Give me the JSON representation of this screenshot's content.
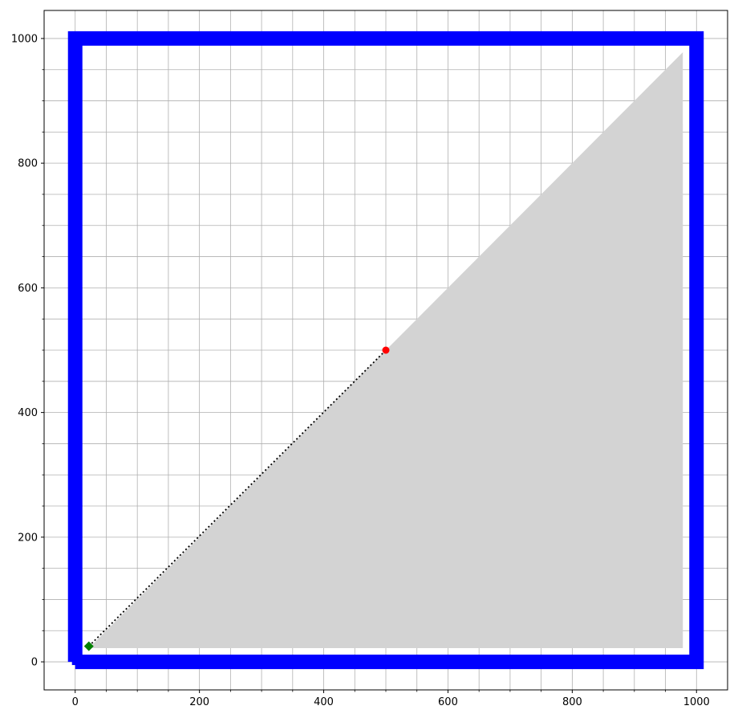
{
  "chart_data": {
    "type": "line",
    "title": "",
    "xlabel": "",
    "ylabel": "",
    "xlim": [
      -50,
      1050
    ],
    "ylim": [
      -45,
      1045
    ],
    "grid": true,
    "x_major_ticks": [
      0,
      200,
      400,
      600,
      800,
      1000
    ],
    "y_major_ticks": [
      0,
      200,
      400,
      600,
      800,
      1000
    ],
    "x_minor_ticks": [
      50,
      100,
      150,
      250,
      300,
      350,
      450,
      500,
      550,
      650,
      700,
      750,
      850,
      900,
      950
    ],
    "y_minor_ticks": [
      50,
      100,
      150,
      250,
      300,
      350,
      450,
      500,
      550,
      650,
      700,
      750,
      850,
      900,
      950
    ],
    "x_tick_labels": [
      "0",
      "200",
      "400",
      "600",
      "800",
      "1000"
    ],
    "y_tick_labels": [
      "0",
      "200",
      "400",
      "600",
      "800",
      "1000"
    ],
    "shaded_region": {
      "name": "shaded-triangle",
      "color": "#d3d3d3",
      "points": [
        [
          22,
          22
        ],
        [
          978,
          22
        ],
        [
          978,
          978
        ]
      ]
    },
    "series": [
      {
        "name": "boundary-path",
        "color": "#0000ff",
        "x": [
          0,
          0,
          1000,
          1000,
          0
        ],
        "y": [
          0,
          1000,
          1000,
          0,
          0
        ],
        "style": "thick-line"
      }
    ],
    "segments": [
      {
        "name": "dotted-segment",
        "color": "#000000",
        "style": "dotted",
        "from": [
          22,
          25
        ],
        "to": [
          500,
          500
        ]
      }
    ],
    "markers": [
      {
        "name": "start-marker",
        "shape": "square",
        "color": "#0000ff",
        "x": 0,
        "y": 0
      },
      {
        "name": "diamond-marker",
        "shape": "diamond",
        "color": "#008000",
        "x": 22,
        "y": 25
      },
      {
        "name": "center-marker",
        "shape": "circle",
        "color": "#ff0000",
        "x": 500,
        "y": 500
      }
    ]
  }
}
